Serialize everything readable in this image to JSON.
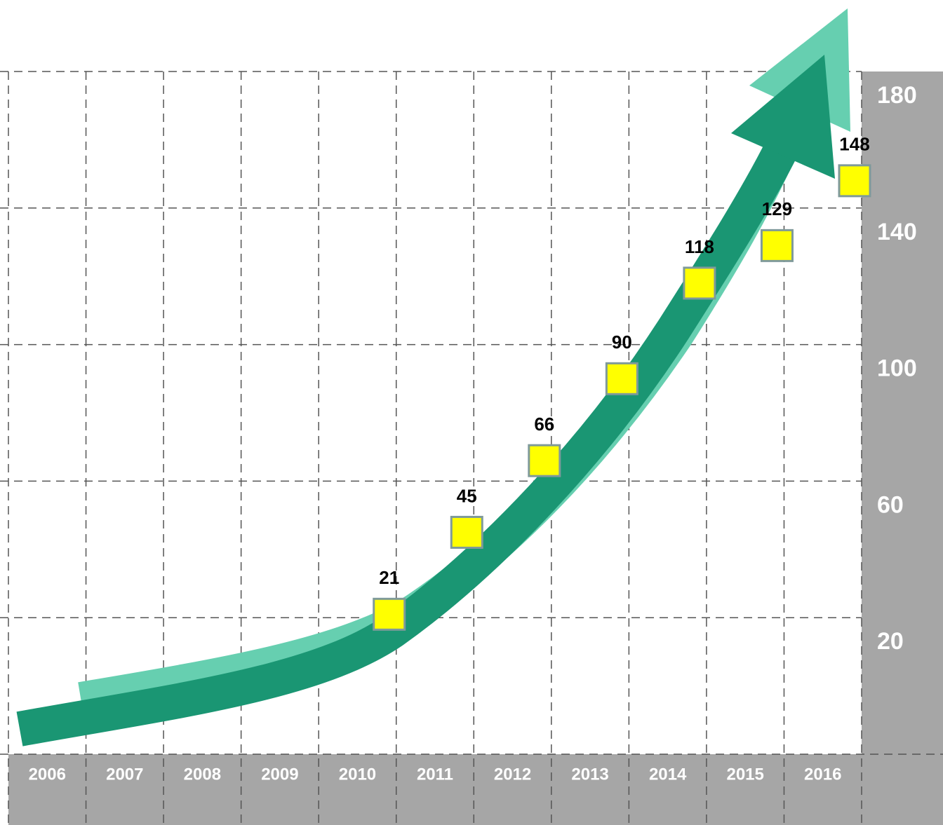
{
  "chart_data": {
    "type": "scatter",
    "categories": [
      "2006",
      "2007",
      "2008",
      "2009",
      "2010",
      "2011",
      "2012",
      "2013",
      "2014",
      "2015",
      "2016"
    ],
    "values": [
      null,
      null,
      null,
      null,
      21,
      45,
      66,
      90,
      118,
      129,
      148
    ],
    "color": "#ffff00",
    "ylim": [
      -20,
      180
    ],
    "yticks": [
      20,
      60,
      100,
      140,
      180
    ],
    "grid": true
  }
}
